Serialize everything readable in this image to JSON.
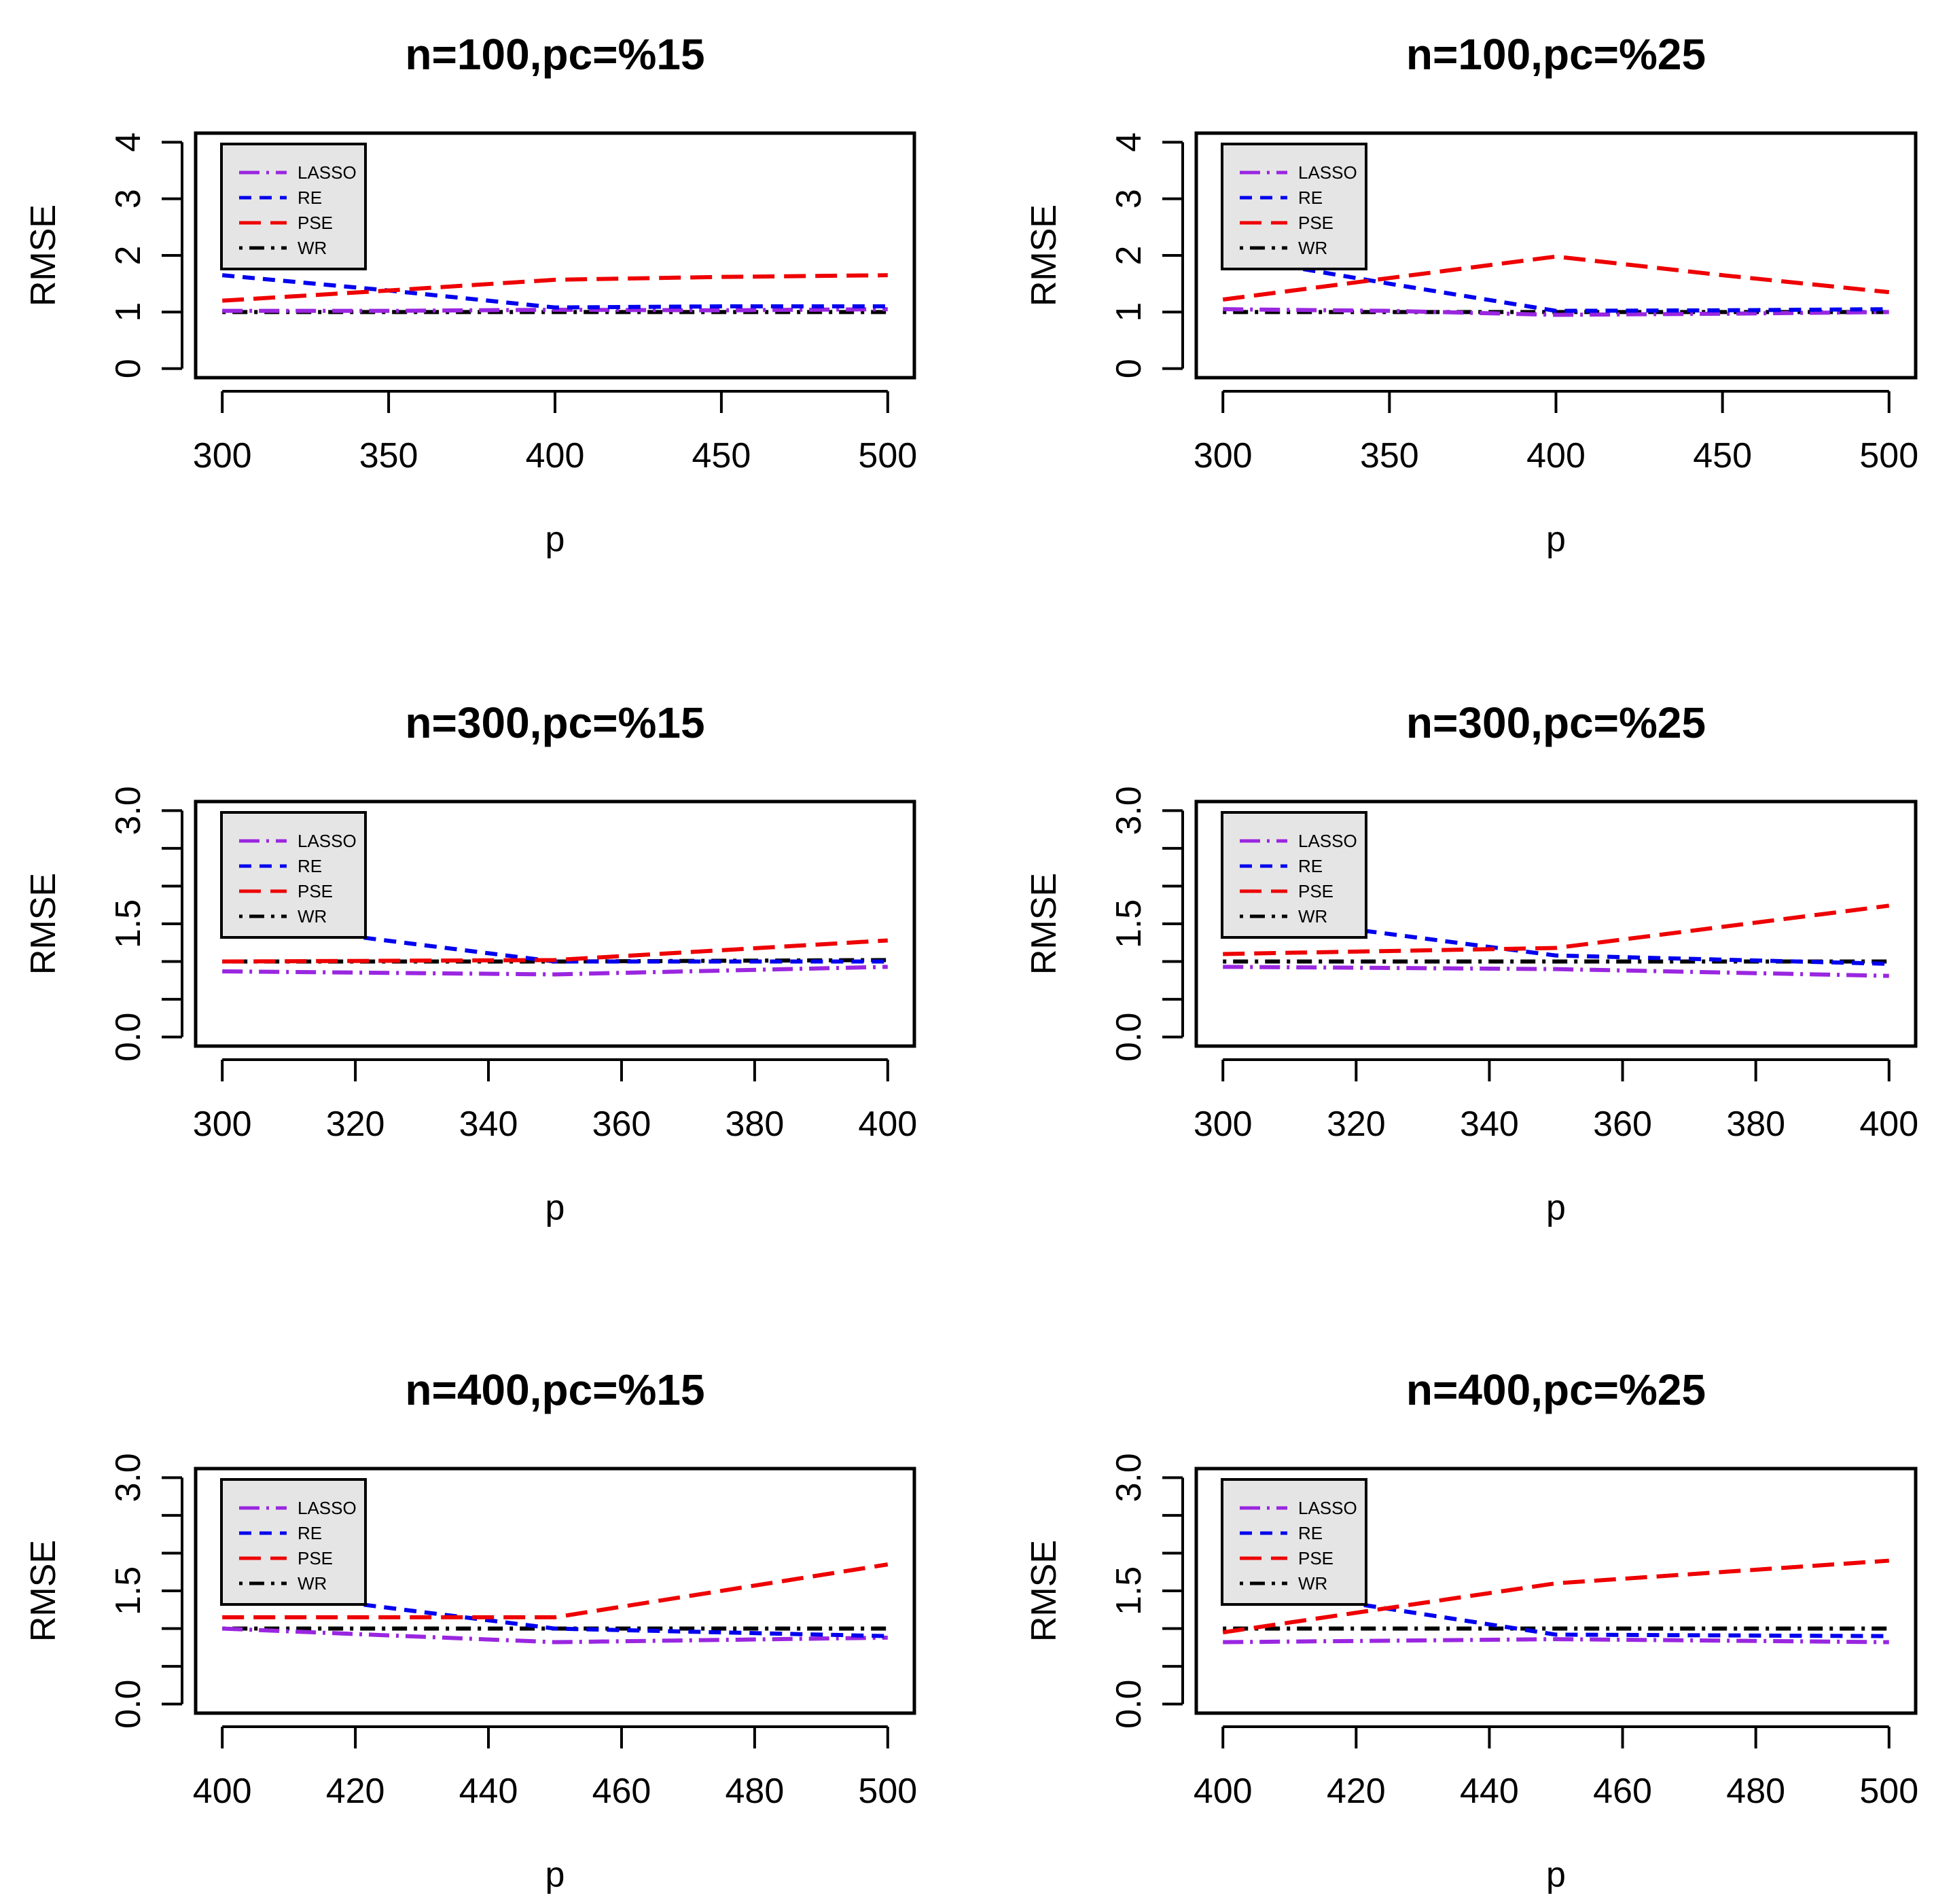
{
  "colors": {
    "LASSO": "#9a26e0",
    "RE": "#0000ee",
    "PSE": "#ee0000",
    "WR": "#000000",
    "legend_bg": "#e5e5e5"
  },
  "chart_data": [
    {
      "type": "line",
      "title": "n=100,pc=%15",
      "xlabel": "p",
      "ylabel": "RMSE",
      "x": [
        300,
        350,
        400,
        450,
        500
      ],
      "xlim": [
        300,
        500
      ],
      "xticks": [
        "300",
        "350",
        "400",
        "450",
        "500"
      ],
      "ylim": [
        0,
        4
      ],
      "yticks": [
        "0",
        "1",
        "2",
        "3",
        "4"
      ],
      "series": [
        {
          "name": "LASSO",
          "values": [
            1.02,
            1.02,
            1.04,
            1.03,
            1.05
          ]
        },
        {
          "name": "RE",
          "values": [
            1.65,
            1.38,
            1.08,
            1.1,
            1.1
          ]
        },
        {
          "name": "PSE",
          "values": [
            1.2,
            1.38,
            1.57,
            1.62,
            1.65
          ]
        },
        {
          "name": "WR",
          "values": [
            1.0,
            1.0,
            1.0,
            1.0,
            1.0
          ]
        }
      ]
    },
    {
      "type": "line",
      "title": "n=100,pc=%25",
      "xlabel": "p",
      "ylabel": "RMSE",
      "x": [
        300,
        350,
        400,
        450,
        500
      ],
      "xlim": [
        300,
        500
      ],
      "xticks": [
        "300",
        "350",
        "400",
        "450",
        "500"
      ],
      "ylim": [
        0,
        4
      ],
      "yticks": [
        "0",
        "1",
        "2",
        "3",
        "4"
      ],
      "series": [
        {
          "name": "LASSO",
          "values": [
            1.05,
            1.02,
            0.95,
            0.97,
            1.0
          ]
        },
        {
          "name": "RE",
          "values": [
            2.0,
            1.5,
            1.02,
            1.03,
            1.05
          ]
        },
        {
          "name": "PSE",
          "values": [
            1.22,
            1.6,
            1.98,
            1.65,
            1.35
          ]
        },
        {
          "name": "WR",
          "values": [
            1.0,
            1.0,
            1.0,
            1.0,
            1.0
          ]
        }
      ]
    },
    {
      "type": "line",
      "title": "n=300,pc=%15",
      "xlabel": "p",
      "ylabel": "RMSE",
      "x": [
        300,
        350,
        400
      ],
      "xlim": [
        300,
        400
      ],
      "xticks": [
        "300",
        "320",
        "340",
        "360",
        "380",
        "400"
      ],
      "ylim": [
        0,
        3
      ],
      "yticks": [
        "0.0",
        "1.5",
        "3.0"
      ],
      "series": [
        {
          "name": "LASSO",
          "values": [
            0.87,
            0.83,
            0.93
          ]
        },
        {
          "name": "RE",
          "values": [
            1.55,
            1.0,
            1.0
          ]
        },
        {
          "name": "PSE",
          "values": [
            1.0,
            1.02,
            1.28
          ]
        },
        {
          "name": "WR",
          "values": [
            1.0,
            1.0,
            1.02
          ]
        }
      ]
    },
    {
      "type": "line",
      "title": "n=300,pc=%25",
      "xlabel": "p",
      "ylabel": "RMSE",
      "x": [
        300,
        350,
        400
      ],
      "xlim": [
        300,
        400
      ],
      "xticks": [
        "300",
        "320",
        "340",
        "360",
        "380",
        "400"
      ],
      "ylim": [
        0,
        3
      ],
      "yticks": [
        "0.0",
        "1.5",
        "3.0"
      ],
      "series": [
        {
          "name": "LASSO",
          "values": [
            0.93,
            0.9,
            0.81
          ]
        },
        {
          "name": "RE",
          "values": [
            1.65,
            1.08,
            0.97
          ]
        },
        {
          "name": "PSE",
          "values": [
            1.1,
            1.18,
            1.74
          ]
        },
        {
          "name": "WR",
          "values": [
            1.0,
            1.0,
            1.0
          ]
        }
      ]
    },
    {
      "type": "line",
      "title": "n=400,pc=%15",
      "xlabel": "p",
      "ylabel": "RMSE",
      "x": [
        400,
        450,
        500
      ],
      "xlim": [
        400,
        500
      ],
      "xticks": [
        "400",
        "420",
        "440",
        "460",
        "480",
        "500"
      ],
      "ylim": [
        0,
        3
      ],
      "yticks": [
        "0.0",
        "1.5",
        "3.0"
      ],
      "series": [
        {
          "name": "LASSO",
          "values": [
            1.0,
            0.82,
            0.88
          ]
        },
        {
          "name": "RE",
          "values": [
            1.55,
            1.0,
            0.9
          ]
        },
        {
          "name": "PSE",
          "values": [
            1.15,
            1.15,
            1.85
          ]
        },
        {
          "name": "WR",
          "values": [
            1.0,
            1.0,
            1.0
          ]
        }
      ]
    },
    {
      "type": "line",
      "title": "n=400,pc=%25",
      "xlabel": "p",
      "ylabel": "RMSE",
      "x": [
        400,
        450,
        500
      ],
      "xlim": [
        400,
        500
      ],
      "xticks": [
        "400",
        "420",
        "440",
        "460",
        "480",
        "500"
      ],
      "ylim": [
        0,
        3
      ],
      "yticks": [
        "0.0",
        "1.5",
        "3.0"
      ],
      "series": [
        {
          "name": "LASSO",
          "values": [
            0.82,
            0.86,
            0.82
          ]
        },
        {
          "name": "RE",
          "values": [
            1.6,
            0.92,
            0.9
          ]
        },
        {
          "name": "PSE",
          "values": [
            0.95,
            1.6,
            1.9
          ]
        },
        {
          "name": "WR",
          "values": [
            1.0,
            1.0,
            1.0
          ]
        }
      ]
    }
  ]
}
